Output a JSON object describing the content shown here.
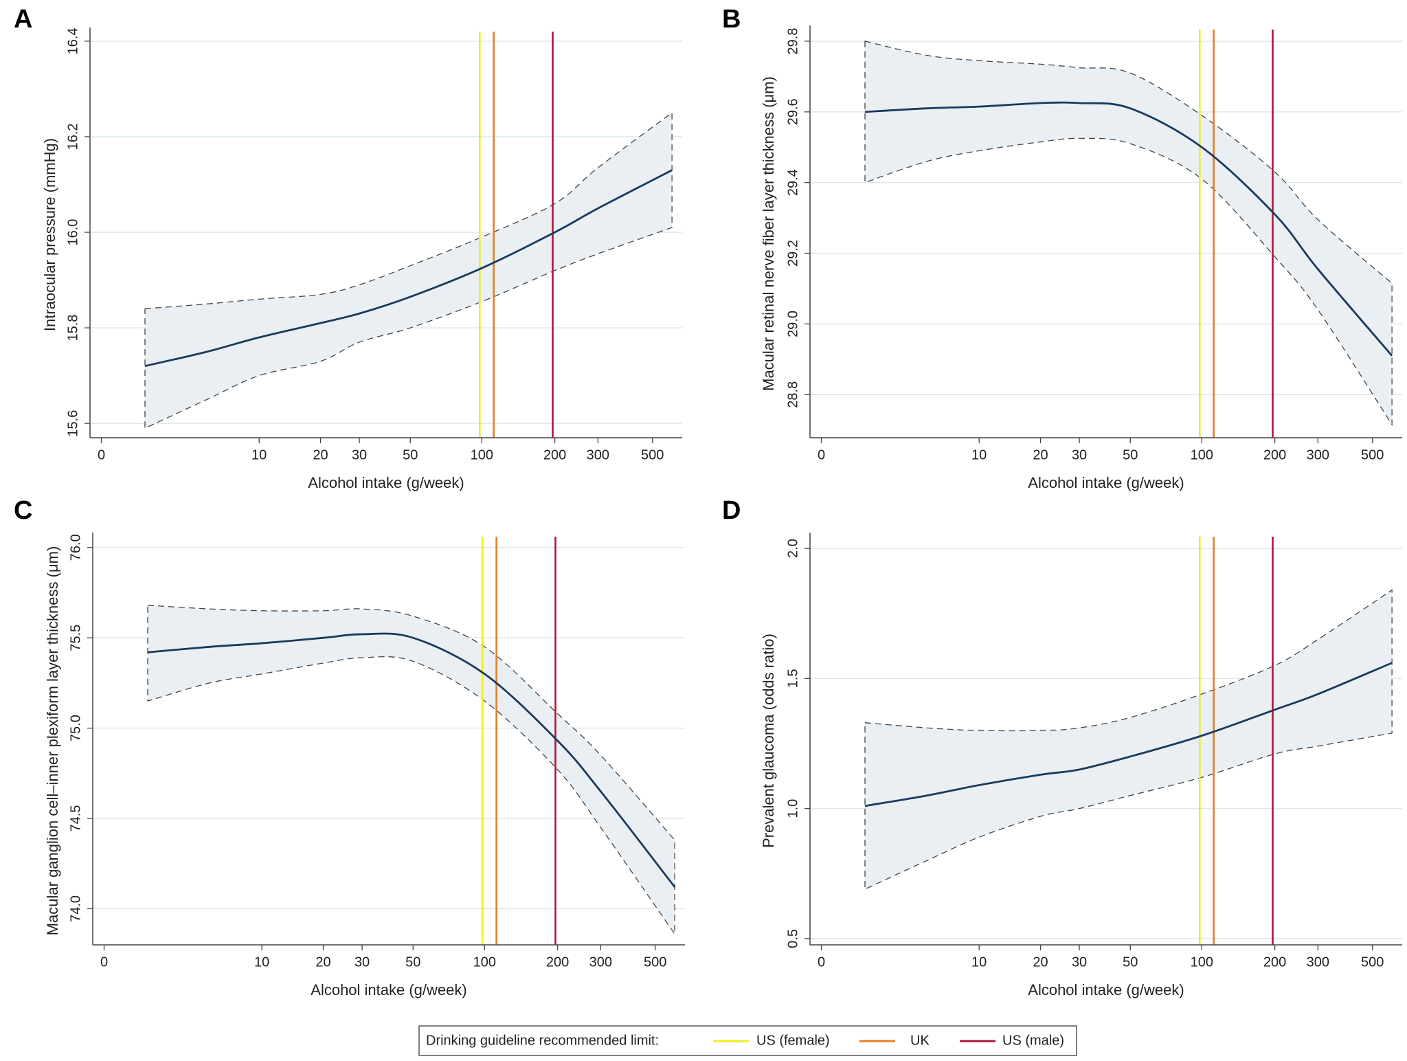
{
  "chart_data": [
    {
      "type": "line",
      "panel": "A",
      "ylabel": "Intraocular pressure (mmHg)",
      "xlabel": "Alcohol intake (g/week)",
      "xscale": "log",
      "xlim": [
        -0.3,
        660
      ],
      "xticks": [
        0,
        10,
        20,
        30,
        50,
        100,
        200,
        300,
        500
      ],
      "ylim": [
        15.57,
        16.42
      ],
      "yticks": [
        15.6,
        15.8,
        {
          "value": 16,
          "label": "16.0"
        },
        16.2,
        16.4
      ],
      "grid": true,
      "x": [
        1.5,
        5,
        10,
        20,
        30,
        50,
        100,
        200,
        300,
        600
      ],
      "color": "#1b3a5c",
      "band_color": "#e9eff3",
      "values": [
        15.72,
        15.75,
        15.78,
        15.81,
        15.83,
        15.865,
        15.925,
        16.0,
        16.05,
        16.13
      ],
      "ci_lower": [
        15.59,
        15.65,
        15.7,
        15.73,
        15.77,
        15.8,
        15.855,
        15.92,
        15.955,
        16.01
      ],
      "ci_upper": [
        15.84,
        15.85,
        15.86,
        15.87,
        15.89,
        15.93,
        15.99,
        16.06,
        16.135,
        16.25
      ]
    },
    {
      "type": "line",
      "panel": "B",
      "ylabel": "Macular retinal nerve fiber layer thickness (μm)",
      "xlabel": "Alcohol intake (g/week)",
      "xscale": "log",
      "xlim": [
        -0.3,
        660
      ],
      "xticks": [
        0,
        10,
        20,
        30,
        50,
        100,
        200,
        300,
        500
      ],
      "ylim": [
        28.678,
        29.833
      ],
      "yticks": [
        28.8,
        {
          "value": 29,
          "label": "29.0"
        },
        29.2,
        29.4,
        29.6,
        29.8
      ],
      "grid": true,
      "x": [
        1.5,
        5,
        10,
        20,
        30,
        50,
        100,
        200,
        300,
        600
      ],
      "color": "#1b3a5c",
      "band_color": "#e9eff3",
      "values": [
        29.6,
        29.61,
        29.615,
        29.625,
        29.625,
        29.61,
        29.5,
        29.31,
        29.155,
        28.91
      ],
      "ci_lower": [
        29.4,
        29.46,
        29.49,
        29.515,
        29.525,
        29.51,
        29.41,
        29.19,
        29.04,
        28.715
      ],
      "ci_upper": [
        29.8,
        29.76,
        29.745,
        29.735,
        29.725,
        29.71,
        29.59,
        29.43,
        29.295,
        29.115
      ]
    },
    {
      "type": "line",
      "panel": "C",
      "ylabel": "Macular ganglion cell–inner plexiform layer thickness (μm)",
      "xlabel": "Alcohol intake (g/week)",
      "xscale": "log",
      "xlim": [
        -0.3,
        660
      ],
      "xticks": [
        0,
        10,
        20,
        30,
        50,
        100,
        200,
        300,
        500
      ],
      "ylim": [
        73.8,
        76.06
      ],
      "yticks": [
        {
          "value": 74,
          "label": "74.0"
        },
        74.5,
        {
          "value": 75,
          "label": "75.0"
        },
        75.5,
        {
          "value": 76,
          "label": "76.0"
        }
      ],
      "grid": true,
      "x": [
        1.5,
        5,
        10,
        20,
        30,
        50,
        100,
        200,
        300,
        600
      ],
      "color": "#1b3a5c",
      "band_color": "#e9eff3",
      "values": [
        75.42,
        75.45,
        75.47,
        75.5,
        75.52,
        75.5,
        75.3,
        74.93,
        74.65,
        74.12
      ],
      "ci_lower": [
        75.15,
        75.25,
        75.3,
        75.36,
        75.39,
        75.37,
        75.15,
        74.77,
        74.45,
        73.86
      ],
      "ci_upper": [
        75.68,
        75.66,
        75.65,
        75.65,
        75.66,
        75.62,
        75.45,
        75.08,
        74.85,
        74.38
      ]
    },
    {
      "type": "line",
      "panel": "D",
      "ylabel": "Prevalent glaucoma (odds ratio)",
      "xlabel": "Alcohol intake (g/week)",
      "xscale": "log",
      "xlim": [
        -0.3,
        660
      ],
      "xticks": [
        0,
        10,
        20,
        30,
        50,
        100,
        200,
        300,
        500
      ],
      "ylim": [
        0.476,
        2.045
      ],
      "yticks": [
        0.5,
        {
          "value": 1,
          "label": "1.0"
        },
        1.5,
        {
          "value": 2,
          "label": "2.0"
        }
      ],
      "grid": true,
      "x": [
        1.5,
        5,
        10,
        20,
        30,
        50,
        100,
        200,
        300,
        600
      ],
      "color": "#1b3a5c",
      "band_color": "#e9eff3",
      "values": [
        1.01,
        1.05,
        1.09,
        1.13,
        1.15,
        1.2,
        1.28,
        1.38,
        1.44,
        1.56
      ],
      "ci_lower": [
        0.69,
        0.8,
        0.89,
        0.97,
        1.0,
        1.05,
        1.12,
        1.21,
        1.24,
        1.29
      ],
      "ci_upper": [
        1.33,
        1.31,
        1.3,
        1.3,
        1.31,
        1.35,
        1.44,
        1.55,
        1.65,
        1.84
      ]
    }
  ],
  "guidelines": {
    "title": "Drinking guideline recommended limit:",
    "items": [
      {
        "name": "US (female)",
        "color": "#f3ec1d",
        "value": 98
      },
      {
        "name": "UK",
        "color": "#e77d22",
        "value": 112
      },
      {
        "name": "US (male)",
        "color": "#b3143c",
        "value": 196
      }
    ]
  }
}
